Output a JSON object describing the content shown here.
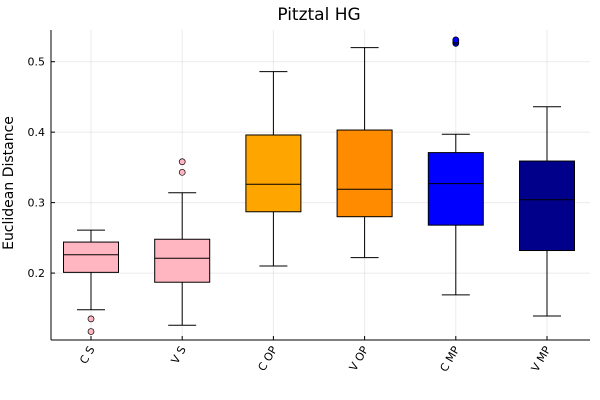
{
  "chart_data": {
    "type": "box",
    "title": "Pitztal HG",
    "xlabel": "",
    "ylabel": "Euclidean Distance",
    "ylim": [
      0.105,
      0.545
    ],
    "yticks": [
      0.2,
      0.3,
      0.4,
      0.5
    ],
    "ytick_labels": [
      "0.2",
      "0.3",
      "0.4",
      "0.5"
    ],
    "grid": true,
    "legend": "none",
    "categories": [
      "C S",
      "V S",
      "C OP",
      "V OP",
      "C MP",
      "V MP"
    ],
    "boxes": [
      {
        "category": "C S",
        "color": "#ffb6c1",
        "whisker_low": 0.148,
        "q1": 0.201,
        "median": 0.226,
        "q3": 0.244,
        "whisker_high": 0.261,
        "outliers": [
          0.135,
          0.117
        ]
      },
      {
        "category": "V S",
        "color": "#ffb6c1",
        "whisker_low": 0.126,
        "q1": 0.187,
        "median": 0.221,
        "q3": 0.248,
        "whisker_high": 0.314,
        "outliers": [
          0.343,
          0.358
        ]
      },
      {
        "category": "C OP",
        "color": "#ffa500",
        "whisker_low": 0.21,
        "q1": 0.287,
        "median": 0.326,
        "q3": 0.396,
        "whisker_high": 0.486,
        "outliers": []
      },
      {
        "category": "V OP",
        "color": "#ff8c00",
        "whisker_low": 0.222,
        "q1": 0.28,
        "median": 0.319,
        "q3": 0.403,
        "whisker_high": 0.52,
        "outliers": []
      },
      {
        "category": "C MP",
        "color": "#0000ff",
        "whisker_low": 0.169,
        "q1": 0.268,
        "median": 0.327,
        "q3": 0.371,
        "whisker_high": 0.397,
        "outliers": [
          0.526,
          0.528,
          0.53,
          0.531
        ]
      },
      {
        "category": "V MP",
        "color": "#00008b",
        "whisker_low": 0.139,
        "q1": 0.232,
        "median": 0.304,
        "q3": 0.359,
        "whisker_high": 0.436,
        "outliers": []
      }
    ]
  }
}
